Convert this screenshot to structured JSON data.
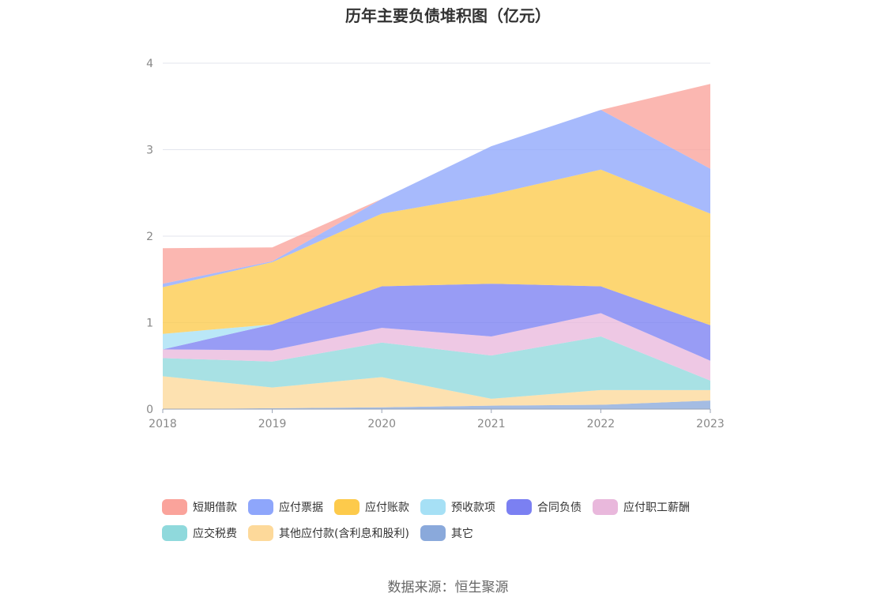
{
  "chart_data": {
    "type": "area",
    "stacked": true,
    "title": "历年主要负债堆积图（亿元）",
    "x": [
      "2018",
      "2019",
      "2020",
      "2021",
      "2022",
      "2023"
    ],
    "yticks": [
      "0",
      "1",
      "2",
      "3",
      "4"
    ],
    "ylim": [
      0,
      4
    ],
    "grid": true,
    "legend_position": "bottom",
    "series": [
      {
        "name": "其它",
        "color": "#8aa9db",
        "values": [
          0.0,
          0.01,
          0.02,
          0.04,
          0.05,
          0.1
        ]
      },
      {
        "name": "其他应付款(含利息和股利)",
        "color": "#fdd99a",
        "values": [
          0.38,
          0.24,
          0.35,
          0.08,
          0.17,
          0.12
        ]
      },
      {
        "name": "应交税费",
        "color": "#8fd9dc",
        "values": [
          0.21,
          0.3,
          0.4,
          0.5,
          0.62,
          0.11
        ]
      },
      {
        "name": "应付职工薪酬",
        "color": "#e9b8dc",
        "values": [
          0.1,
          0.13,
          0.17,
          0.22,
          0.27,
          0.23
        ]
      },
      {
        "name": "合同负债",
        "color": "#7b80f2",
        "values": [
          0.0,
          0.3,
          0.48,
          0.61,
          0.31,
          0.41
        ]
      },
      {
        "name": "预收款项",
        "color": "#a6e0f5",
        "values": [
          0.18,
          0.0,
          0.0,
          0.0,
          0.0,
          0.0
        ]
      },
      {
        "name": "应付账款",
        "color": "#fdca4b",
        "values": [
          0.54,
          0.72,
          0.84,
          1.03,
          1.35,
          1.29
        ]
      },
      {
        "name": "应付票据",
        "color": "#8ea6fb",
        "values": [
          0.04,
          0.01,
          0.17,
          0.56,
          0.69,
          0.52
        ]
      },
      {
        "name": "短期借款",
        "color": "#faa39b",
        "values": [
          0.41,
          0.16,
          0.0,
          0.0,
          0.0,
          0.98
        ]
      }
    ]
  },
  "legend": [
    {
      "label": "短期借款",
      "color": "#faa39b"
    },
    {
      "label": "应付票据",
      "color": "#8ea6fb"
    },
    {
      "label": "应付账款",
      "color": "#fdca4b"
    },
    {
      "label": "预收款项",
      "color": "#a6e0f5"
    },
    {
      "label": "合同负债",
      "color": "#7b80f2"
    },
    {
      "label": "应付职工薪酬",
      "color": "#e9b8dc"
    },
    {
      "label": "应交税费",
      "color": "#8fd9dc"
    },
    {
      "label": "其他应付款(含利息和股利)",
      "color": "#fdd99a"
    },
    {
      "label": "其它",
      "color": "#8aa9db"
    }
  ],
  "source": "数据来源：恒生聚源"
}
